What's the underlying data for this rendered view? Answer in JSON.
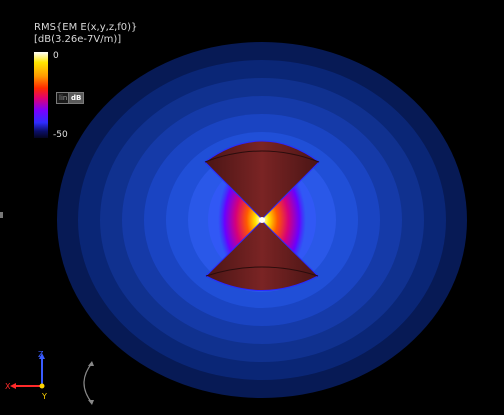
{
  "legend": {
    "title": "RMS{EM E(x,y,z,f0)}\n[dB(3.26e-7V/m)]",
    "max_label": "0",
    "min_label": "-50",
    "scale_buttons": {
      "linear": "lin",
      "db": "dB"
    },
    "colormap": [
      "#ffffff",
      "#ffe600",
      "#ff9a00",
      "#ff2a00",
      "#e00075",
      "#7a00ff",
      "#2f2cff",
      "#0b0f6a",
      "#050520"
    ]
  },
  "triad": {
    "x_label": "X",
    "y_label": "Y",
    "z_label": "Z"
  },
  "colors": {
    "background": "#000000",
    "cone": "#6e1f1f",
    "cone_edge": "#2a2aff"
  }
}
